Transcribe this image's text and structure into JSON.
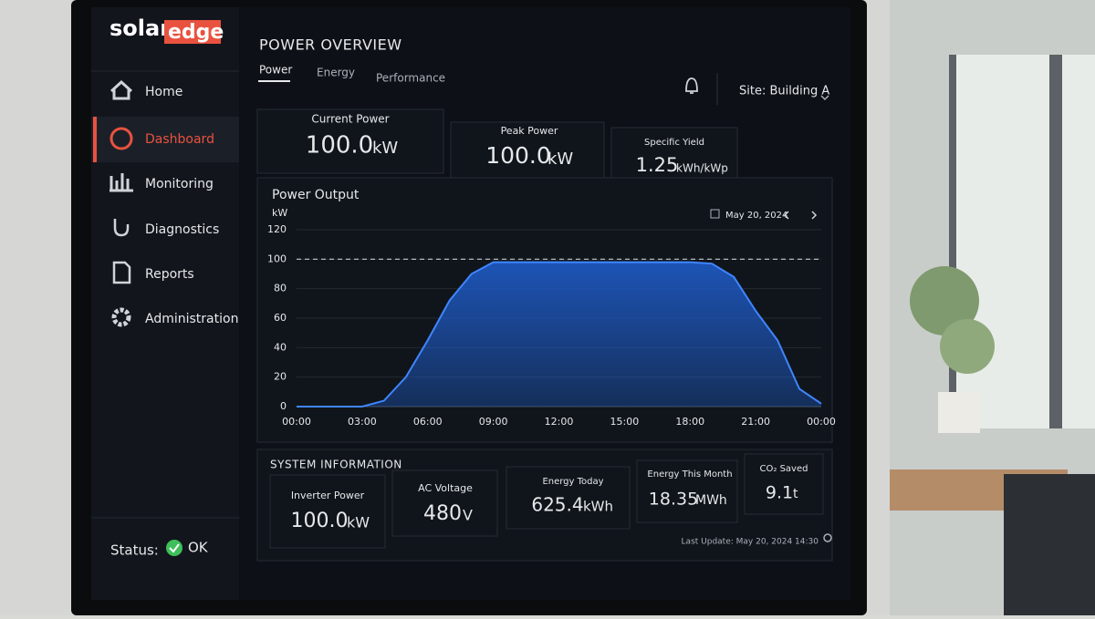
{
  "logo": {
    "part1": "solar",
    "part2": "edge"
  },
  "sidebar": {
    "nav": [
      "Home",
      "Dashboard",
      "Monitoring",
      "Diagnostics",
      "Reports",
      "Administration"
    ],
    "status": {
      "label": "Status:",
      "value": "OK"
    }
  },
  "header": {
    "title": "POWER OVERVIEW",
    "tabs": [
      "Power",
      "Energy",
      "Performance"
    ],
    "site": "Site: Building A"
  },
  "kpis": [
    {
      "label": "Current Power",
      "value": "100.0",
      "unit": "kW"
    },
    {
      "label": "Peak Power",
      "value": "100.0",
      "unit": "kW"
    },
    {
      "label": "Specific Yield",
      "value": "1.25",
      "unit": "kWh/kWp"
    }
  ],
  "chart_data": {
    "type": "area",
    "title": "Power Output",
    "ylabel": "kW",
    "date": "May 20, 2024",
    "categories": [
      "00:00",
      null,
      null,
      "03:00",
      null,
      null,
      "06:00",
      null,
      null,
      "09:00",
      null,
      null,
      "12:00",
      null,
      null,
      "15:00",
      null,
      null,
      "18:00",
      null,
      null,
      "21:00",
      null,
      null,
      "00:00"
    ],
    "values": [
      0,
      0,
      0,
      0,
      4,
      20,
      45,
      72,
      90,
      98,
      98,
      98,
      98,
      98,
      98,
      98,
      98,
      98,
      98,
      97,
      88,
      65,
      45,
      12,
      2
    ],
    "color": "#1f5fd1",
    "reference_line": 100,
    "ylim": [
      0,
      120
    ],
    "yticks": [
      0,
      20,
      40,
      60,
      80,
      100,
      120
    ],
    "grid": true
  },
  "system_info": {
    "title": "SYSTEM INFORMATION",
    "items": [
      {
        "label": "Inverter Power",
        "value": "100.0",
        "unit": "kW"
      },
      {
        "label": "AC Voltage",
        "value": "480",
        "unit": "V"
      },
      {
        "label": "Energy Today",
        "value": "625.4",
        "unit": "kWh"
      },
      {
        "label": "Energy This Month",
        "value": "18.35",
        "unit": "MWh"
      },
      {
        "label": "CO₂ Saved",
        "value": "9.1",
        "unit": "t"
      }
    ],
    "last_update": "Last Update: May 20, 2024  14:30"
  }
}
